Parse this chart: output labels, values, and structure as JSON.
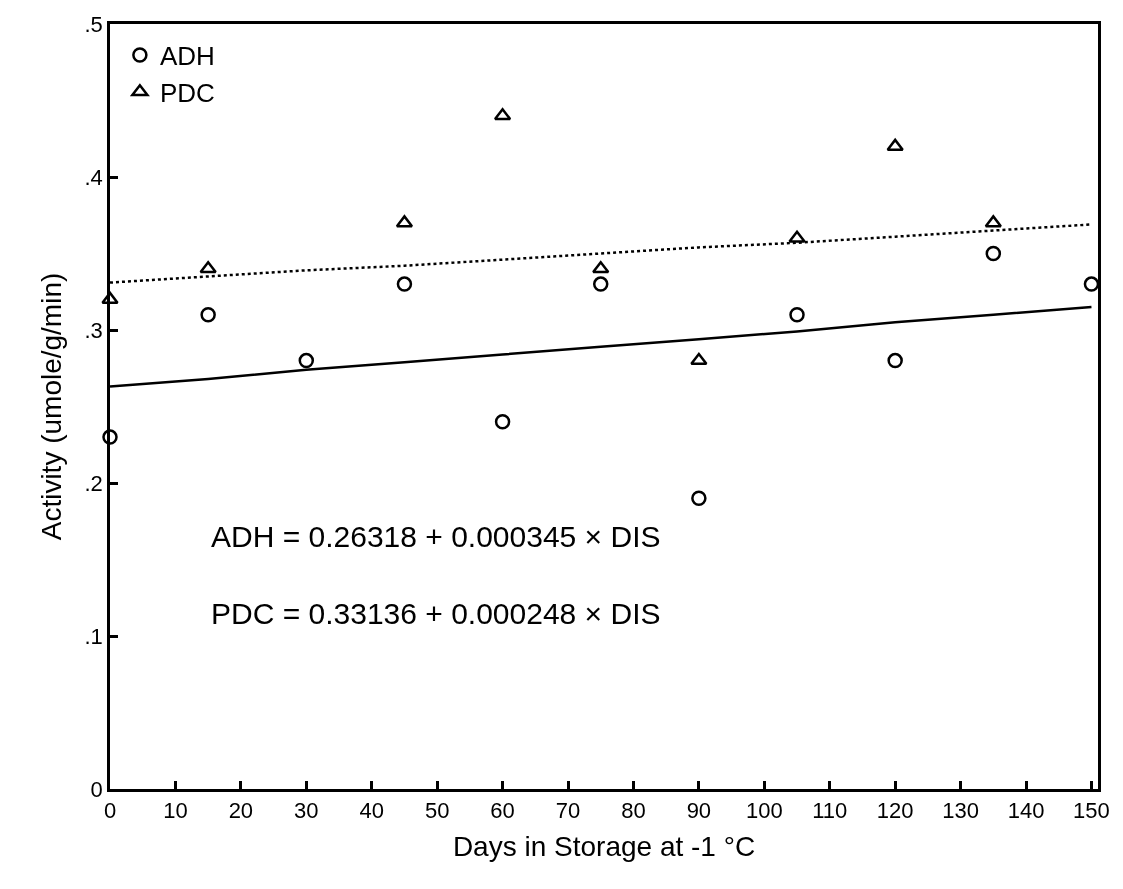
{
  "chart_data": {
    "type": "scatter",
    "xlabel": "Days in Storage at -1 °C",
    "ylabel": "Activity (umole/g/min)",
    "x": [
      0,
      15,
      30,
      45,
      60,
      75,
      90,
      105,
      120,
      135,
      150
    ],
    "series": [
      {
        "name": "ADH",
        "color": "#000000",
        "marker": "circle",
        "values": [
          0.23,
          0.31,
          0.28,
          0.33,
          0.24,
          0.33,
          0.19,
          0.31,
          0.28,
          0.35,
          0.33
        ]
      },
      {
        "name": "PDC",
        "color": "#000000",
        "marker": "triangle",
        "values": [
          0.32,
          0.34,
          null,
          0.37,
          0.44,
          0.34,
          0.28,
          0.36,
          0.42,
          0.37,
          null
        ]
      },
      {
        "type": "line",
        "color": "#000000",
        "line_style": "solid",
        "values": [
          0.263,
          0.268,
          0.274,
          0.279,
          0.284,
          0.289,
          0.294,
          0.299,
          0.305,
          0.31,
          0.315
        ]
      },
      {
        "type": "line",
        "color": "#000000",
        "line_style": "dotted",
        "values": [
          0.331,
          0.335,
          0.339,
          0.342,
          0.346,
          0.35,
          0.354,
          0.357,
          0.361,
          0.365,
          0.369
        ]
      }
    ],
    "annotations": [
      "ADH = 0.26318 + 0.000345 × DIS",
      "PDC = 0.33136 + 0.000248 × DIS"
    ],
    "xlim": [
      0,
      151
    ],
    "xticks": [
      0,
      10,
      20,
      30,
      40,
      50,
      60,
      70,
      80,
      90,
      100,
      110,
      120,
      130,
      140,
      150
    ],
    "ylim": [
      0,
      0.5
    ],
    "yticks": [
      0,
      {
        "value": 0.1,
        "label": ".1"
      },
      {
        "value": 0.2,
        "label": ".2"
      },
      {
        "value": 0.3,
        "label": ".3"
      },
      {
        "value": 0.4,
        "label": ".4"
      },
      {
        "value": 0.5,
        "label": ".5"
      }
    ],
    "legend": "top left"
  }
}
